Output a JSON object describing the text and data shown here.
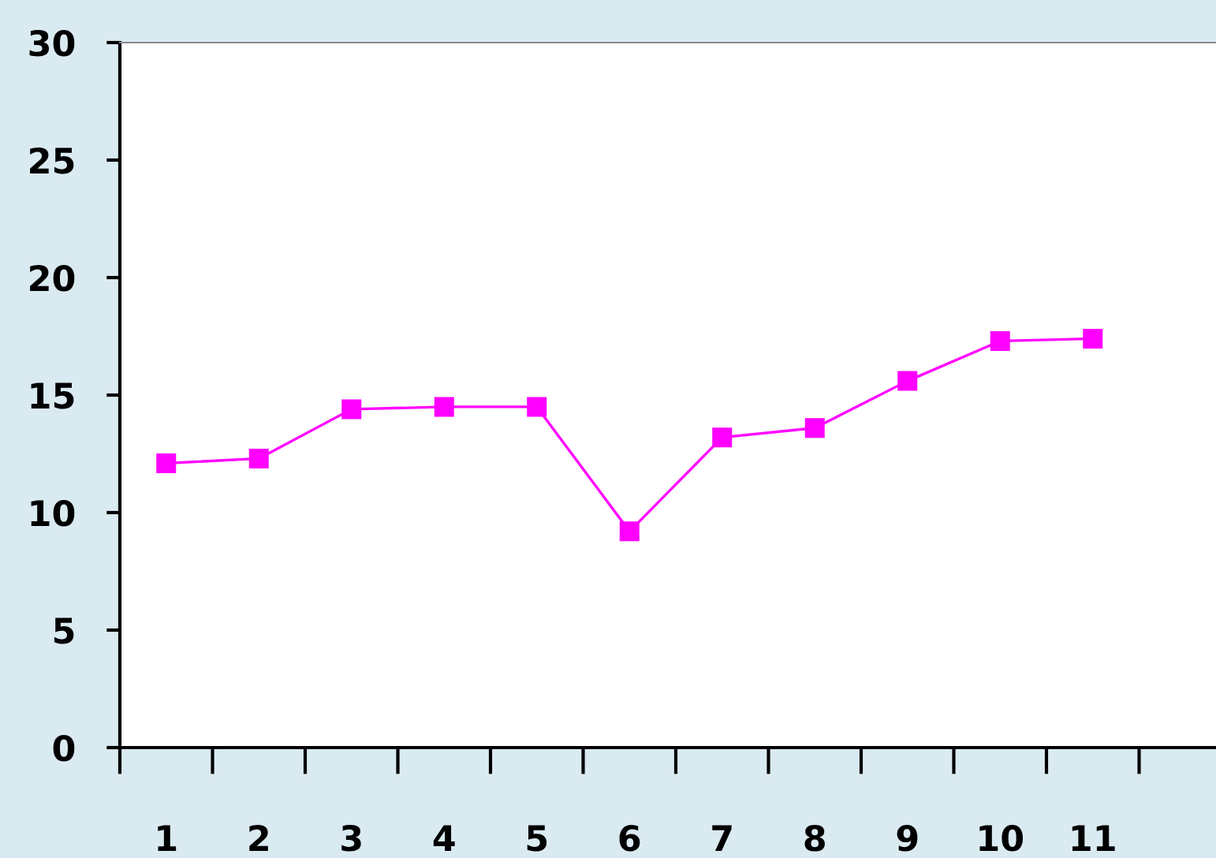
{
  "chart_data": {
    "type": "line",
    "categories": [
      "1",
      "2",
      "3",
      "4",
      "5",
      "6",
      "7",
      "8",
      "9",
      "10",
      "11",
      null
    ],
    "series": [
      {
        "color": "#ff00ff",
        "values": [
          12.1,
          12.3,
          14.4,
          14.5,
          14.5,
          9.2,
          13.2,
          13.6,
          15.6,
          17.3,
          17.4,
          null
        ]
      }
    ],
    "ylim": [
      0,
      30
    ],
    "yticks": [
      0,
      5,
      10,
      15,
      20,
      25,
      30
    ],
    "marker": "square",
    "line_style": "solid",
    "grid": false,
    "legend": false
  }
}
